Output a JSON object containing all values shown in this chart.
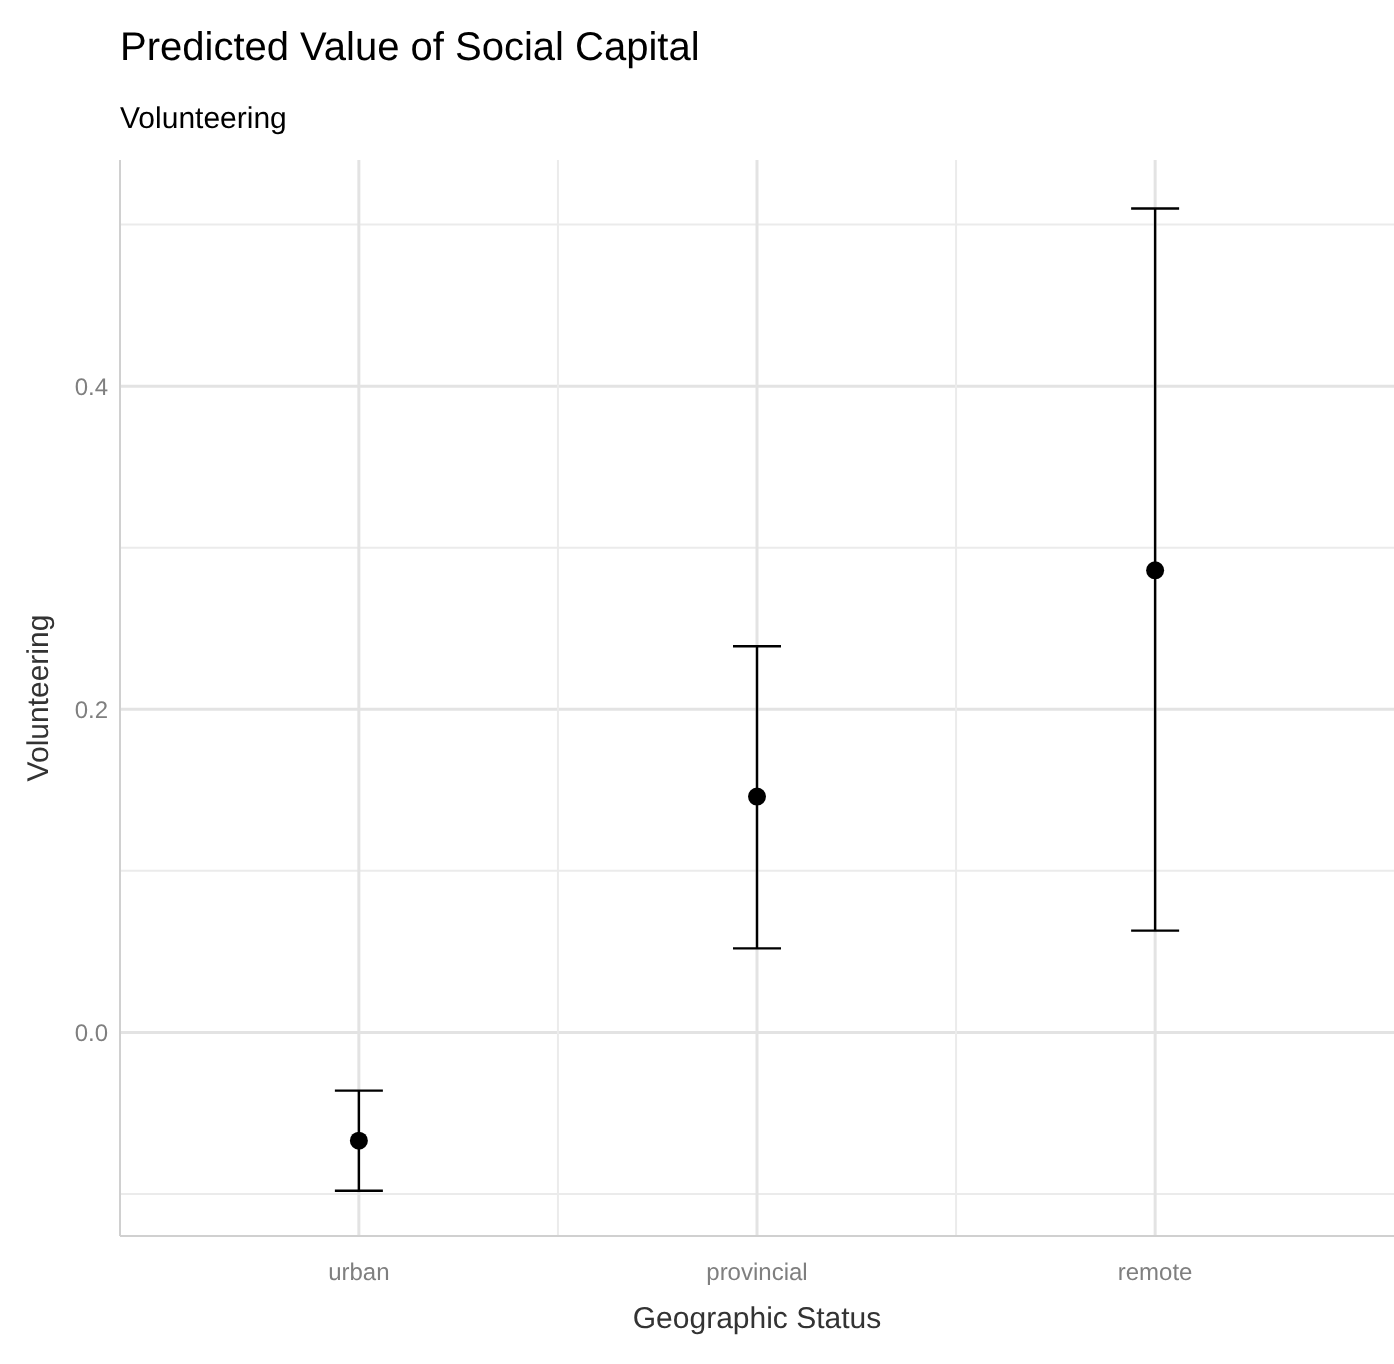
{
  "chart_data": {
    "type": "scatter",
    "title": "Predicted Value of Social Capital",
    "subtitle": "Volunteering",
    "xlabel": "Geographic Status",
    "ylabel": "Volunteering",
    "categories": [
      "urban",
      "provincial",
      "remote"
    ],
    "values": [
      -0.067,
      0.146,
      0.286
    ],
    "errors": [
      [
        -0.098,
        -0.036
      ],
      [
        0.052,
        0.239
      ],
      [
        0.063,
        0.51
      ]
    ],
    "color": "#000000",
    "marker": "circle",
    "grid": true,
    "ylim": [
      -0.126,
      0.54
    ],
    "yticks": [
      {
        "value": 0,
        "label": "0.0"
      },
      0.2,
      0.4
    ]
  }
}
